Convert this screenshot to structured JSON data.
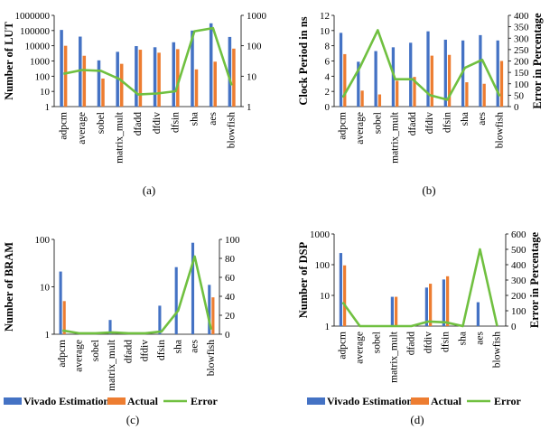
{
  "colors": {
    "estimation": "#4472C4",
    "actual": "#ED7D31",
    "error": "#70C040"
  },
  "legend": {
    "c": [
      "Vivado Estimation",
      "Actual",
      "Error"
    ],
    "d": [
      "Vivado Estimation",
      "Actual",
      "Error"
    ]
  },
  "chart_data": [
    {
      "type": "bar",
      "panel": "(a)",
      "categories": [
        "adpcm",
        "average",
        "sobel",
        "matrix_mult",
        "dfadd",
        "dfdiv",
        "dfsin",
        "sha",
        "aes",
        "blowfish"
      ],
      "ylabel": "Number of LUT",
      "y_scale": "log",
      "ylim": [
        1,
        1000000
      ],
      "yticks": [
        "1",
        "10",
        "100",
        "1000",
        "10000",
        "100000",
        "1000000"
      ],
      "y2_scale": "log",
      "y2lim": [
        1,
        1000
      ],
      "y2ticks": [
        "1",
        "10",
        "100",
        "1000"
      ],
      "series": [
        {
          "name": "Vivado Estimation",
          "type": "bar",
          "values": [
            110000,
            40000,
            1100,
            4000,
            9500,
            8000,
            17000,
            100000,
            300000,
            38000
          ]
        },
        {
          "name": "Actual",
          "type": "bar",
          "values": [
            10000,
            2200,
            70,
            650,
            5500,
            3500,
            6000,
            280,
            900,
            6500
          ]
        },
        {
          "name": "Error",
          "type": "line",
          "axis": "secondary",
          "values": [
            12,
            16,
            15,
            8,
            2.5,
            2.7,
            3.2,
            300,
            380,
            5
          ]
        }
      ]
    },
    {
      "type": "bar",
      "panel": "(b)",
      "categories": [
        "adpcm",
        "average",
        "sobel",
        "matrix_mult",
        "dfadd",
        "dfdiv",
        "dfsin",
        "sha",
        "aes",
        "blowfish"
      ],
      "ylabel": "Clock Period in ns",
      "ylim": [
        0,
        12
      ],
      "yticks": [
        "0",
        "2",
        "4",
        "6",
        "8",
        "10",
        "12"
      ],
      "y2label": "Error in Percentage",
      "y2lim": [
        0,
        400
      ],
      "y2ticks": [
        "0",
        "50",
        "100",
        "150",
        "200",
        "250",
        "300",
        "350",
        "400"
      ],
      "series": [
        {
          "name": "Vivado Estimation",
          "type": "bar",
          "values": [
            9.7,
            5.9,
            7.3,
            7.8,
            8.4,
            9.9,
            8.8,
            8.7,
            9.4,
            8.7
          ]
        },
        {
          "name": "Actual",
          "type": "bar",
          "values": [
            6.9,
            2.1,
            1.6,
            3.4,
            3.9,
            6.7,
            6.8,
            3.2,
            3.0,
            6.0
          ]
        },
        {
          "name": "Error",
          "type": "line",
          "axis": "secondary",
          "values": [
            40,
            175,
            335,
            120,
            120,
            50,
            30,
            170,
            205,
            45
          ]
        }
      ]
    },
    {
      "type": "bar",
      "panel": "(c)",
      "categories": [
        "adpcm",
        "average",
        "sobel",
        "matrix_mult",
        "dfadd",
        "dfdiv",
        "dfsin",
        "sha",
        "aes",
        "blowfish"
      ],
      "ylabel": "Number of BRAM",
      "y_scale": "log",
      "ylim": [
        1,
        100
      ],
      "yticks": [
        "1",
        "10",
        "100"
      ],
      "y2lim": [
        0,
        100
      ],
      "y2ticks": [
        "0",
        "20",
        "40",
        "60",
        "80",
        "100"
      ],
      "series": [
        {
          "name": "Vivado Estimation",
          "type": "bar",
          "values": [
            21,
            0,
            0,
            2,
            0,
            0,
            4,
            26,
            85,
            11
          ]
        },
        {
          "name": "Actual",
          "type": "bar",
          "values": [
            5,
            0,
            0,
            0,
            0,
            0,
            0,
            0,
            0,
            6
          ]
        },
        {
          "name": "Error",
          "type": "line",
          "axis": "secondary",
          "values": [
            4,
            1,
            1,
            2,
            1,
            1,
            3,
            25,
            82,
            5
          ]
        }
      ]
    },
    {
      "type": "bar",
      "panel": "(d)",
      "categories": [
        "adpcm",
        "average",
        "sobel",
        "matrix_mult",
        "dfadd",
        "dfdiv",
        "dfsin",
        "sha",
        "aes",
        "blowfish"
      ],
      "ylabel": "Number of DSP",
      "y_scale": "log",
      "ylim": [
        1,
        1000
      ],
      "yticks": [
        "1",
        "10",
        "100",
        "1000"
      ],
      "y2label": "Error in Percentage",
      "y2lim": [
        0,
        600
      ],
      "y2ticks": [
        "0",
        "100",
        "200",
        "300",
        "400",
        "500",
        "600"
      ],
      "series": [
        {
          "name": "Vivado Estimation",
          "type": "bar",
          "values": [
            240,
            0,
            0,
            9,
            0,
            18,
            33,
            0,
            6,
            0
          ]
        },
        {
          "name": "Actual",
          "type": "bar",
          "values": [
            95,
            0,
            0,
            9,
            0,
            24,
            42,
            0,
            0,
            0
          ]
        },
        {
          "name": "Error",
          "type": "line",
          "axis": "secondary",
          "values": [
            155,
            0,
            0,
            0,
            0,
            30,
            25,
            0,
            500,
            0
          ]
        }
      ]
    }
  ]
}
